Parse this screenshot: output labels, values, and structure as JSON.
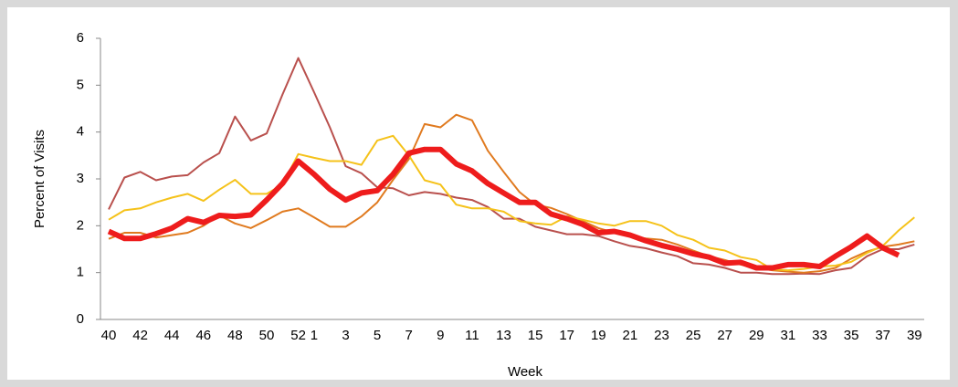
{
  "chart_data": {
    "type": "line",
    "x_label": "Week",
    "y_label": "Percent of Visits",
    "categories": [
      "40",
      null,
      "42",
      null,
      "44",
      null,
      "46",
      null,
      "48",
      null,
      "50",
      null,
      "52",
      "1",
      null,
      "3",
      null,
      "5",
      null,
      "7",
      null,
      "9",
      null,
      "11",
      null,
      "13",
      null,
      "15",
      null,
      "17",
      null,
      "19",
      null,
      "21",
      null,
      "23",
      null,
      "25",
      null,
      "27",
      null,
      "29",
      null,
      "31",
      null,
      "33",
      null,
      "35",
      null,
      "37",
      null,
      "39"
    ],
    "ylim": [
      0,
      6
    ],
    "yticks": [
      0,
      1,
      2,
      3,
      4,
      5,
      6
    ],
    "series": [
      {
        "color": "#b9504d",
        "width": 2,
        "values": [
          2.35,
          3.03,
          3.15,
          2.97,
          3.05,
          3.08,
          3.35,
          3.55,
          4.33,
          3.82,
          3.97,
          4.8,
          5.58,
          4.85,
          4.1,
          3.27,
          3.12,
          2.82,
          2.8,
          2.65,
          2.72,
          2.68,
          2.6,
          2.55,
          2.4,
          2.15,
          2.15,
          1.98,
          1.9,
          1.82,
          1.82,
          1.78,
          1.67,
          1.57,
          1.52,
          1.43,
          1.35,
          1.2,
          1.17,
          1.1,
          1.0,
          1.0,
          0.97,
          0.97,
          0.98,
          0.97,
          1.05,
          1.1,
          1.35,
          1.5,
          1.5,
          1.6
        ]
      },
      {
        "color": "#e07a1f",
        "width": 2,
        "values": [
          1.72,
          1.85,
          1.85,
          1.75,
          1.8,
          1.85,
          2.0,
          2.22,
          2.05,
          1.95,
          2.12,
          2.3,
          2.37,
          2.18,
          1.98,
          1.98,
          2.2,
          2.5,
          2.98,
          3.42,
          4.17,
          4.1,
          4.37,
          4.25,
          3.6,
          3.15,
          2.72,
          2.45,
          2.38,
          2.25,
          2.1,
          1.95,
          1.85,
          1.77,
          1.73,
          1.7,
          1.6,
          1.47,
          1.35,
          1.27,
          1.17,
          1.1,
          1.05,
          1.02,
          1.0,
          1.03,
          1.1,
          1.3,
          1.45,
          1.55,
          1.6,
          1.67
        ]
      },
      {
        "color": "#f5c21a",
        "width": 2,
        "values": [
          2.13,
          2.33,
          2.37,
          2.5,
          2.6,
          2.68,
          2.53,
          2.77,
          2.98,
          2.68,
          2.68,
          2.88,
          3.53,
          3.45,
          3.38,
          3.38,
          3.3,
          3.82,
          3.92,
          3.5,
          2.97,
          2.88,
          2.45,
          2.37,
          2.37,
          2.3,
          2.1,
          2.05,
          2.02,
          2.2,
          2.13,
          2.05,
          2.0,
          2.1,
          2.1,
          2.0,
          1.8,
          1.7,
          1.53,
          1.47,
          1.33,
          1.27,
          1.07,
          1.05,
          1.08,
          1.13,
          1.15,
          1.23,
          1.42,
          1.57,
          1.9,
          2.18
        ]
      },
      {
        "color": "#ee1c1c",
        "width": 6,
        "values": [
          1.88,
          1.73,
          1.73,
          1.83,
          1.95,
          2.15,
          2.07,
          2.22,
          2.2,
          2.23,
          2.55,
          2.9,
          3.38,
          3.1,
          2.78,
          2.55,
          2.7,
          2.75,
          3.1,
          3.55,
          3.63,
          3.63,
          3.32,
          3.17,
          2.9,
          2.7,
          2.5,
          2.5,
          2.25,
          2.15,
          2.03,
          1.85,
          1.88,
          1.8,
          1.68,
          1.58,
          1.5,
          1.4,
          1.33,
          1.2,
          1.22,
          1.1,
          1.1,
          1.17,
          1.17,
          1.13,
          1.35,
          1.55,
          1.78,
          1.53,
          1.37,
          null
        ]
      }
    ]
  }
}
